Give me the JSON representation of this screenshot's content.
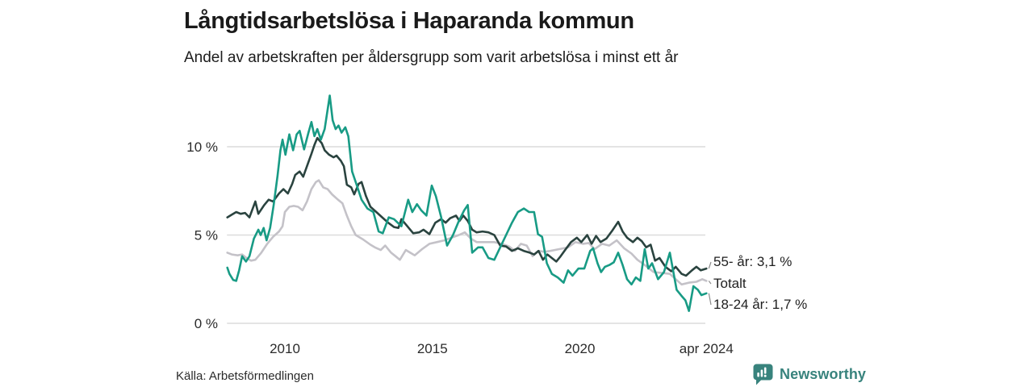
{
  "header": {
    "title": "Långtidsarbetslösa i Haparanda kommun",
    "subtitle": "Andel av arbetskraften per åldersgrupp som varit arbetslösa i minst ett år"
  },
  "footer": {
    "source": "Källa: Arbetsförmedlingen",
    "brand": "Newsworthy"
  },
  "colors": {
    "series_55": "#2a433f",
    "series_totalt": "#c4c2c8",
    "series_18_24": "#189b85",
    "gridline": "#dcdcdc",
    "leader": "#8a8a8a",
    "brand_teal": "#38837d"
  },
  "chart_data": {
    "type": "line",
    "title": "Långtidsarbetslösa i Haparanda kommun",
    "subtitle": "Andel av arbetskraften per åldersgrupp som varit arbetslösa i minst ett år",
    "unit": "%",
    "grid": true,
    "legend_position": "end-of-line",
    "x_range": [
      2008.05,
      2024.29
    ],
    "ylim": [
      0,
      13.5
    ],
    "y_axis": {
      "ticks": [
        {
          "label": "0 %",
          "value": 0
        },
        {
          "label": "5 %",
          "value": 5
        },
        {
          "label": "10 %",
          "value": 10
        }
      ]
    },
    "x_axis": {
      "ticks": [
        {
          "label": "2010",
          "year": 2010
        },
        {
          "label": "2015",
          "year": 2015
        },
        {
          "label": "2020",
          "year": 2020
        },
        {
          "label": "apr 2024",
          "year": 2024.29
        }
      ]
    },
    "series": [
      {
        "name": "55- år",
        "end_label": "55- år: 3,1 %",
        "color": "#2a433f",
        "last_value": 3.1,
        "points": [
          [
            2008.05,
            6.0
          ],
          [
            2008.2,
            6.15
          ],
          [
            2008.35,
            6.3
          ],
          [
            2008.5,
            6.2
          ],
          [
            2008.65,
            6.25
          ],
          [
            2008.8,
            6.0
          ],
          [
            2009.0,
            6.9
          ],
          [
            2009.1,
            6.2
          ],
          [
            2009.3,
            6.7
          ],
          [
            2009.45,
            7.0
          ],
          [
            2009.6,
            6.9
          ],
          [
            2009.8,
            7.35
          ],
          [
            2009.95,
            7.6
          ],
          [
            2010.1,
            7.35
          ],
          [
            2010.25,
            7.9
          ],
          [
            2010.35,
            8.4
          ],
          [
            2010.5,
            8.6
          ],
          [
            2010.62,
            8.3
          ],
          [
            2010.75,
            8.9
          ],
          [
            2010.9,
            9.6
          ],
          [
            2011.0,
            10.1
          ],
          [
            2011.1,
            10.5
          ],
          [
            2011.25,
            10.2
          ],
          [
            2011.35,
            9.8
          ],
          [
            2011.5,
            9.55
          ],
          [
            2011.65,
            9.4
          ],
          [
            2011.75,
            9.5
          ],
          [
            2011.9,
            9.2
          ],
          [
            2012.0,
            8.9
          ],
          [
            2012.1,
            7.85
          ],
          [
            2012.25,
            7.7
          ],
          [
            2012.35,
            7.3
          ],
          [
            2012.5,
            7.9
          ],
          [
            2012.6,
            8.0
          ],
          [
            2012.75,
            7.2
          ],
          [
            2012.9,
            6.6
          ],
          [
            2013.1,
            6.3
          ],
          [
            2013.3,
            6.0
          ],
          [
            2013.5,
            5.7
          ],
          [
            2013.7,
            5.45
          ],
          [
            2013.85,
            5.4
          ],
          [
            2013.95,
            5.9
          ],
          [
            2014.15,
            5.5
          ],
          [
            2014.35,
            5.1
          ],
          [
            2014.55,
            5.15
          ],
          [
            2014.7,
            5.3
          ],
          [
            2014.9,
            5.05
          ],
          [
            2015.1,
            5.7
          ],
          [
            2015.3,
            5.9
          ],
          [
            2015.45,
            5.7
          ],
          [
            2015.6,
            5.95
          ],
          [
            2015.8,
            6.1
          ],
          [
            2015.92,
            5.8
          ],
          [
            2016.05,
            6.1
          ],
          [
            2016.2,
            5.8
          ],
          [
            2016.35,
            5.3
          ],
          [
            2016.5,
            5.15
          ],
          [
            2016.7,
            5.2
          ],
          [
            2016.9,
            5.15
          ],
          [
            2017.1,
            5.0
          ],
          [
            2017.3,
            4.4
          ],
          [
            2017.5,
            4.35
          ],
          [
            2017.7,
            4.1
          ],
          [
            2017.9,
            4.25
          ],
          [
            2018.1,
            4.1
          ],
          [
            2018.3,
            4.0
          ],
          [
            2018.45,
            3.9
          ],
          [
            2018.6,
            4.1
          ],
          [
            2018.75,
            3.6
          ],
          [
            2018.9,
            3.9
          ],
          [
            2019.05,
            3.7
          ],
          [
            2019.2,
            3.5
          ],
          [
            2019.35,
            3.8
          ],
          [
            2019.5,
            4.15
          ],
          [
            2019.7,
            4.6
          ],
          [
            2019.9,
            4.85
          ],
          [
            2020.05,
            4.6
          ],
          [
            2020.25,
            5.0
          ],
          [
            2020.4,
            4.5
          ],
          [
            2020.55,
            4.95
          ],
          [
            2020.7,
            4.6
          ],
          [
            2020.9,
            4.8
          ],
          [
            2021.1,
            5.25
          ],
          [
            2021.3,
            5.75
          ],
          [
            2021.45,
            5.2
          ],
          [
            2021.6,
            4.85
          ],
          [
            2021.8,
            4.6
          ],
          [
            2021.95,
            4.85
          ],
          [
            2022.1,
            4.65
          ],
          [
            2022.25,
            4.3
          ],
          [
            2022.4,
            4.45
          ],
          [
            2022.55,
            3.55
          ],
          [
            2022.7,
            3.7
          ],
          [
            2022.9,
            3.2
          ],
          [
            2023.1,
            2.95
          ],
          [
            2023.25,
            3.2
          ],
          [
            2023.45,
            2.8
          ],
          [
            2023.6,
            2.7
          ],
          [
            2023.8,
            3.0
          ],
          [
            2023.95,
            3.2
          ],
          [
            2024.1,
            3.0
          ],
          [
            2024.29,
            3.1
          ]
        ]
      },
      {
        "name": "Totalt",
        "end_label": "Totalt",
        "color": "#c4c2c8",
        "points": [
          [
            2008.05,
            4.0
          ],
          [
            2008.2,
            3.9
          ],
          [
            2008.4,
            3.85
          ],
          [
            2008.55,
            3.9
          ],
          [
            2008.7,
            3.7
          ],
          [
            2008.85,
            3.55
          ],
          [
            2009.0,
            3.6
          ],
          [
            2009.2,
            4.0
          ],
          [
            2009.4,
            4.5
          ],
          [
            2009.6,
            4.9
          ],
          [
            2009.8,
            5.2
          ],
          [
            2009.92,
            5.5
          ],
          [
            2010.0,
            6.3
          ],
          [
            2010.15,
            6.6
          ],
          [
            2010.3,
            6.65
          ],
          [
            2010.45,
            6.6
          ],
          [
            2010.6,
            6.4
          ],
          [
            2010.75,
            6.9
          ],
          [
            2010.9,
            7.6
          ],
          [
            2011.05,
            8.0
          ],
          [
            2011.15,
            8.1
          ],
          [
            2011.3,
            7.7
          ],
          [
            2011.45,
            7.6
          ],
          [
            2011.6,
            7.3
          ],
          [
            2011.8,
            7.0
          ],
          [
            2011.95,
            6.8
          ],
          [
            2012.1,
            6.1
          ],
          [
            2012.25,
            5.5
          ],
          [
            2012.4,
            5.0
          ],
          [
            2012.65,
            4.75
          ],
          [
            2012.9,
            4.45
          ],
          [
            2013.05,
            4.3
          ],
          [
            2013.25,
            4.15
          ],
          [
            2013.4,
            4.4
          ],
          [
            2013.6,
            4.0
          ],
          [
            2013.75,
            3.8
          ],
          [
            2013.9,
            3.6
          ],
          [
            2014.1,
            4.15
          ],
          [
            2014.4,
            3.85
          ],
          [
            2014.65,
            4.2
          ],
          [
            2014.9,
            4.5
          ],
          [
            2015.15,
            4.6
          ],
          [
            2015.4,
            4.7
          ],
          [
            2015.65,
            4.85
          ],
          [
            2015.9,
            5.0
          ],
          [
            2016.1,
            5.15
          ],
          [
            2016.3,
            4.8
          ],
          [
            2016.5,
            4.6
          ],
          [
            2016.8,
            4.6
          ],
          [
            2017.1,
            4.6
          ],
          [
            2017.35,
            4.5
          ],
          [
            2017.6,
            4.35
          ],
          [
            2017.8,
            4.1
          ],
          [
            2018.0,
            4.5
          ],
          [
            2018.2,
            4.4
          ],
          [
            2018.4,
            3.8
          ],
          [
            2018.6,
            4.1
          ],
          [
            2018.8,
            4.05
          ],
          [
            2019.0,
            4.1
          ],
          [
            2019.3,
            4.2
          ],
          [
            2019.6,
            4.3
          ],
          [
            2019.85,
            4.6
          ],
          [
            2020.1,
            4.5
          ],
          [
            2020.3,
            4.55
          ],
          [
            2020.5,
            4.2
          ],
          [
            2020.75,
            4.5
          ],
          [
            2021.0,
            4.4
          ],
          [
            2021.25,
            4.7
          ],
          [
            2021.5,
            4.25
          ],
          [
            2021.75,
            3.95
          ],
          [
            2021.95,
            3.6
          ],
          [
            2022.2,
            3.3
          ],
          [
            2022.5,
            2.9
          ],
          [
            2022.8,
            2.85
          ],
          [
            2023.05,
            2.8
          ],
          [
            2023.25,
            2.5
          ],
          [
            2023.45,
            2.2
          ],
          [
            2023.7,
            2.3
          ],
          [
            2023.95,
            2.35
          ],
          [
            2024.15,
            2.5
          ],
          [
            2024.29,
            2.4
          ]
        ]
      },
      {
        "name": "18-24 år",
        "end_label": "18-24 år: 1,7 %",
        "color": "#189b85",
        "last_value": 1.7,
        "points": [
          [
            2008.05,
            3.15
          ],
          [
            2008.12,
            2.8
          ],
          [
            2008.25,
            2.45
          ],
          [
            2008.35,
            2.4
          ],
          [
            2008.45,
            3.0
          ],
          [
            2008.55,
            3.8
          ],
          [
            2008.68,
            3.5
          ],
          [
            2008.8,
            3.8
          ],
          [
            2008.95,
            4.8
          ],
          [
            2009.1,
            5.3
          ],
          [
            2009.18,
            5.0
          ],
          [
            2009.28,
            5.4
          ],
          [
            2009.38,
            4.7
          ],
          [
            2009.5,
            5.4
          ],
          [
            2009.62,
            6.7
          ],
          [
            2009.75,
            8.35
          ],
          [
            2009.85,
            9.8
          ],
          [
            2009.92,
            10.4
          ],
          [
            2010.02,
            9.55
          ],
          [
            2010.15,
            10.7
          ],
          [
            2010.28,
            9.8
          ],
          [
            2010.4,
            10.7
          ],
          [
            2010.5,
            10.9
          ],
          [
            2010.65,
            9.85
          ],
          [
            2010.8,
            10.8
          ],
          [
            2010.9,
            11.4
          ],
          [
            2011.0,
            10.6
          ],
          [
            2011.1,
            11.0
          ],
          [
            2011.22,
            10.4
          ],
          [
            2011.35,
            11.0
          ],
          [
            2011.52,
            12.9
          ],
          [
            2011.62,
            11.5
          ],
          [
            2011.72,
            11.0
          ],
          [
            2011.82,
            11.2
          ],
          [
            2011.92,
            10.8
          ],
          [
            2012.05,
            11.1
          ],
          [
            2012.15,
            10.6
          ],
          [
            2012.28,
            8.6
          ],
          [
            2012.42,
            7.9
          ],
          [
            2012.6,
            7.0
          ],
          [
            2012.8,
            6.5
          ],
          [
            2013.0,
            6.3
          ],
          [
            2013.18,
            5.2
          ],
          [
            2013.32,
            5.1
          ],
          [
            2013.52,
            6.0
          ],
          [
            2013.7,
            5.9
          ],
          [
            2013.95,
            5.5
          ],
          [
            2014.18,
            7.0
          ],
          [
            2014.32,
            6.3
          ],
          [
            2014.48,
            6.75
          ],
          [
            2014.62,
            6.4
          ],
          [
            2014.8,
            6.1
          ],
          [
            2014.98,
            7.8
          ],
          [
            2015.12,
            7.2
          ],
          [
            2015.3,
            6.0
          ],
          [
            2015.5,
            4.4
          ],
          [
            2015.7,
            5.0
          ],
          [
            2015.9,
            5.8
          ],
          [
            2016.08,
            6.4
          ],
          [
            2016.2,
            6.7
          ],
          [
            2016.35,
            4.0
          ],
          [
            2016.55,
            4.3
          ],
          [
            2016.7,
            4.3
          ],
          [
            2016.9,
            3.7
          ],
          [
            2017.1,
            3.6
          ],
          [
            2017.3,
            4.3
          ],
          [
            2017.5,
            5.0
          ],
          [
            2017.7,
            5.7
          ],
          [
            2017.9,
            6.3
          ],
          [
            2018.1,
            6.5
          ],
          [
            2018.28,
            6.3
          ],
          [
            2018.45,
            6.3
          ],
          [
            2018.58,
            5.05
          ],
          [
            2018.72,
            4.9
          ],
          [
            2018.88,
            3.4
          ],
          [
            2019.05,
            2.8
          ],
          [
            2019.25,
            2.6
          ],
          [
            2019.45,
            2.3
          ],
          [
            2019.6,
            3.0
          ],
          [
            2019.75,
            2.7
          ],
          [
            2019.95,
            3.1
          ],
          [
            2020.15,
            3.1
          ],
          [
            2020.35,
            4.1
          ],
          [
            2020.45,
            4.25
          ],
          [
            2020.6,
            3.4
          ],
          [
            2020.72,
            2.9
          ],
          [
            2020.85,
            3.2
          ],
          [
            2021.0,
            3.3
          ],
          [
            2021.15,
            3.45
          ],
          [
            2021.3,
            4.0
          ],
          [
            2021.45,
            3.3
          ],
          [
            2021.6,
            2.5
          ],
          [
            2021.75,
            2.2
          ],
          [
            2021.9,
            2.6
          ],
          [
            2022.05,
            2.4
          ],
          [
            2022.2,
            4.2
          ],
          [
            2022.32,
            3.1
          ],
          [
            2022.45,
            3.4
          ],
          [
            2022.65,
            2.5
          ],
          [
            2022.85,
            2.9
          ],
          [
            2023.05,
            4.0
          ],
          [
            2023.28,
            1.9
          ],
          [
            2023.45,
            1.55
          ],
          [
            2023.58,
            1.3
          ],
          [
            2023.7,
            0.7
          ],
          [
            2023.85,
            2.1
          ],
          [
            2024.0,
            1.9
          ],
          [
            2024.12,
            1.6
          ],
          [
            2024.29,
            1.7
          ]
        ]
      }
    ]
  }
}
